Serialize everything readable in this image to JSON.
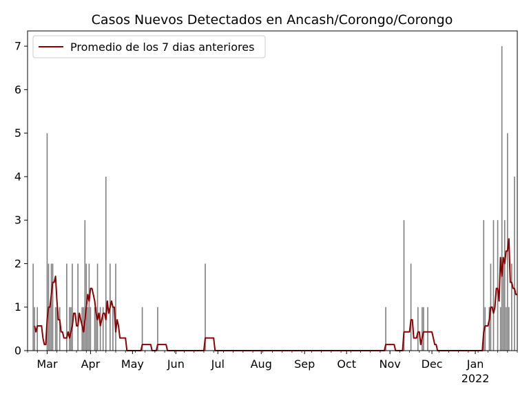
{
  "chart_data": {
    "type": "bar",
    "title": "Casos Nuevos Detectados en Ancash/Corongo/Corongo",
    "xlabel": "",
    "ylabel": "",
    "ylim": [
      0,
      7.35
    ],
    "xlim": [
      "2021-02-15",
      "2022-01-31"
    ],
    "yticks": [
      0,
      1,
      2,
      3,
      4,
      5,
      6,
      7
    ],
    "xticks": [
      {
        "date": "2021-03-01",
        "label": "Mar",
        "sub": ""
      },
      {
        "date": "2021-04-01",
        "label": "Apr",
        "sub": ""
      },
      {
        "date": "2021-05-01",
        "label": "May",
        "sub": ""
      },
      {
        "date": "2021-06-01",
        "label": "Jun",
        "sub": ""
      },
      {
        "date": "2021-07-01",
        "label": "Jul",
        "sub": ""
      },
      {
        "date": "2021-08-01",
        "label": "Aug",
        "sub": ""
      },
      {
        "date": "2021-09-01",
        "label": "Sep",
        "sub": ""
      },
      {
        "date": "2021-10-01",
        "label": "Oct",
        "sub": ""
      },
      {
        "date": "2021-11-01",
        "label": "Nov",
        "sub": ""
      },
      {
        "date": "2021-12-01",
        "label": "Dec",
        "sub": ""
      },
      {
        "date": "2022-01-01",
        "label": "Jan",
        "sub": "2022"
      }
    ],
    "legend": {
      "label": "Promedio de los 7 dias anteriores",
      "placement": "upper-left"
    },
    "series": [
      {
        "type": "bar",
        "color": "#808080",
        "points": [
          [
            "2021-02-19",
            2
          ],
          [
            "2021-02-20",
            1
          ],
          [
            "2021-02-22",
            1
          ],
          [
            "2021-03-01",
            5
          ],
          [
            "2021-03-02",
            2
          ],
          [
            "2021-03-03",
            1
          ],
          [
            "2021-03-04",
            2
          ],
          [
            "2021-03-05",
            2
          ],
          [
            "2021-03-07",
            1
          ],
          [
            "2021-03-08",
            1
          ],
          [
            "2021-03-10",
            1
          ],
          [
            "2021-03-15",
            2
          ],
          [
            "2021-03-17",
            1
          ],
          [
            "2021-03-18",
            1
          ],
          [
            "2021-03-19",
            2
          ],
          [
            "2021-03-23",
            2
          ],
          [
            "2021-03-26",
            1
          ],
          [
            "2021-03-27",
            1
          ],
          [
            "2021-03-28",
            3
          ],
          [
            "2021-03-29",
            2
          ],
          [
            "2021-03-30",
            1
          ],
          [
            "2021-03-31",
            2
          ],
          [
            "2021-04-01",
            1
          ],
          [
            "2021-04-04",
            1
          ],
          [
            "2021-04-05",
            1
          ],
          [
            "2021-04-06",
            2
          ],
          [
            "2021-04-08",
            1
          ],
          [
            "2021-04-10",
            1
          ],
          [
            "2021-04-12",
            4
          ],
          [
            "2021-04-15",
            2
          ],
          [
            "2021-04-17",
            1
          ],
          [
            "2021-04-19",
            2
          ],
          [
            "2021-05-08",
            1
          ],
          [
            "2021-05-19",
            1
          ],
          [
            "2021-06-22",
            2
          ],
          [
            "2021-10-29",
            1
          ],
          [
            "2021-11-11",
            3
          ],
          [
            "2021-11-16",
            2
          ],
          [
            "2021-11-21",
            1
          ],
          [
            "2021-11-24",
            1
          ],
          [
            "2021-11-25",
            1
          ],
          [
            "2021-11-28",
            1
          ],
          [
            "2022-01-07",
            3
          ],
          [
            "2022-01-08",
            1
          ],
          [
            "2022-01-11",
            1
          ],
          [
            "2022-01-12",
            2
          ],
          [
            "2022-01-14",
            3
          ],
          [
            "2022-01-17",
            3
          ],
          [
            "2022-01-19",
            1
          ],
          [
            "2022-01-20",
            7
          ],
          [
            "2022-01-21",
            2
          ],
          [
            "2022-01-22",
            3
          ],
          [
            "2022-01-23",
            1
          ],
          [
            "2022-01-24",
            5
          ],
          [
            "2022-01-25",
            1
          ],
          [
            "2022-01-27",
            2
          ],
          [
            "2022-01-29",
            4
          ]
        ]
      },
      {
        "type": "line",
        "name": "Promedio de los 7 dias anteriores",
        "color": "#8b0000",
        "points": [
          [
            "2021-02-20",
            0.57
          ],
          [
            "2021-02-21",
            0.43
          ],
          [
            "2021-02-22",
            0.57
          ],
          [
            "2021-02-25",
            0.57
          ],
          [
            "2021-02-26",
            0.29
          ],
          [
            "2021-02-27",
            0.14
          ],
          [
            "2021-02-28",
            0.14
          ],
          [
            "2021-03-01",
            0.71
          ],
          [
            "2021-03-02",
            1.0
          ],
          [
            "2021-03-03",
            1.0
          ],
          [
            "2021-03-04",
            1.29
          ],
          [
            "2021-03-05",
            1.57
          ],
          [
            "2021-03-06",
            1.57
          ],
          [
            "2021-03-07",
            1.71
          ],
          [
            "2021-03-08",
            1.14
          ],
          [
            "2021-03-09",
            0.71
          ],
          [
            "2021-03-10",
            0.71
          ],
          [
            "2021-03-11",
            0.43
          ],
          [
            "2021-03-12",
            0.43
          ],
          [
            "2021-03-13",
            0.29
          ],
          [
            "2021-03-15",
            0.29
          ],
          [
            "2021-03-16",
            0.43
          ],
          [
            "2021-03-17",
            0.29
          ],
          [
            "2021-03-18",
            0.43
          ],
          [
            "2021-03-19",
            0.57
          ],
          [
            "2021-03-20",
            0.86
          ],
          [
            "2021-03-21",
            0.86
          ],
          [
            "2021-03-22",
            0.57
          ],
          [
            "2021-03-23",
            0.57
          ],
          [
            "2021-03-24",
            0.86
          ],
          [
            "2021-03-25",
            0.71
          ],
          [
            "2021-03-26",
            0.57
          ],
          [
            "2021-03-27",
            0.43
          ],
          [
            "2021-03-28",
            0.71
          ],
          [
            "2021-03-29",
            1.0
          ],
          [
            "2021-03-30",
            1.29
          ],
          [
            "2021-03-31",
            1.14
          ],
          [
            "2021-04-01",
            1.43
          ],
          [
            "2021-04-02",
            1.43
          ],
          [
            "2021-04-03",
            1.29
          ],
          [
            "2021-04-04",
            1.14
          ],
          [
            "2021-04-05",
            0.86
          ],
          [
            "2021-04-06",
            0.71
          ],
          [
            "2021-04-07",
            0.86
          ],
          [
            "2021-04-08",
            0.57
          ],
          [
            "2021-04-09",
            0.71
          ],
          [
            "2021-04-10",
            0.86
          ],
          [
            "2021-04-11",
            0.86
          ],
          [
            "2021-04-12",
            0.71
          ],
          [
            "2021-04-13",
            1.14
          ],
          [
            "2021-04-14",
            0.86
          ],
          [
            "2021-04-15",
            1.0
          ],
          [
            "2021-04-16",
            1.14
          ],
          [
            "2021-04-17",
            1.0
          ],
          [
            "2021-04-18",
            1.0
          ],
          [
            "2021-04-19",
            0.43
          ],
          [
            "2021-04-20",
            0.71
          ],
          [
            "2021-04-21",
            0.57
          ],
          [
            "2021-04-22",
            0.29
          ],
          [
            "2021-04-26",
            0.29
          ],
          [
            "2021-04-27",
            0.0
          ],
          [
            "2021-05-07",
            0.0
          ],
          [
            "2021-05-08",
            0.14
          ],
          [
            "2021-05-14",
            0.14
          ],
          [
            "2021-05-15",
            0.0
          ],
          [
            "2021-05-18",
            0.0
          ],
          [
            "2021-05-19",
            0.14
          ],
          [
            "2021-05-25",
            0.14
          ],
          [
            "2021-05-26",
            0.0
          ],
          [
            "2021-06-21",
            0.0
          ],
          [
            "2021-06-22",
            0.29
          ],
          [
            "2021-06-28",
            0.29
          ],
          [
            "2021-06-29",
            0.0
          ],
          [
            "2021-10-28",
            0.0
          ],
          [
            "2021-10-29",
            0.14
          ],
          [
            "2021-11-04",
            0.14
          ],
          [
            "2021-11-05",
            0.0
          ],
          [
            "2021-11-10",
            0.0
          ],
          [
            "2021-11-11",
            0.43
          ],
          [
            "2021-11-15",
            0.43
          ],
          [
            "2021-11-16",
            0.71
          ],
          [
            "2021-11-17",
            0.71
          ],
          [
            "2021-11-18",
            0.29
          ],
          [
            "2021-11-20",
            0.29
          ],
          [
            "2021-11-21",
            0.43
          ],
          [
            "2021-11-22",
            0.43
          ],
          [
            "2021-11-23",
            0.14
          ],
          [
            "2021-11-24",
            0.29
          ],
          [
            "2021-11-25",
            0.43
          ],
          [
            "2021-12-01",
            0.43
          ],
          [
            "2021-12-02",
            0.29
          ],
          [
            "2021-12-03",
            0.14
          ],
          [
            "2021-12-04",
            0.14
          ],
          [
            "2021-12-05",
            0.0
          ],
          [
            "2022-01-06",
            0.0
          ],
          [
            "2022-01-07",
            0.43
          ],
          [
            "2022-01-08",
            0.57
          ],
          [
            "2022-01-10",
            0.57
          ],
          [
            "2022-01-11",
            0.71
          ],
          [
            "2022-01-12",
            1.0
          ],
          [
            "2022-01-13",
            1.0
          ],
          [
            "2022-01-14",
            0.86
          ],
          [
            "2022-01-15",
            1.0
          ],
          [
            "2022-01-16",
            1.43
          ],
          [
            "2022-01-17",
            1.43
          ],
          [
            "2022-01-18",
            1.14
          ],
          [
            "2022-01-19",
            2.14
          ],
          [
            "2022-01-20",
            1.71
          ],
          [
            "2022-01-21",
            2.14
          ],
          [
            "2022-01-22",
            2.0
          ],
          [
            "2022-01-23",
            2.29
          ],
          [
            "2022-01-24",
            2.29
          ],
          [
            "2022-01-25",
            2.57
          ],
          [
            "2022-01-26",
            1.57
          ],
          [
            "2022-01-27",
            1.57
          ],
          [
            "2022-01-28",
            1.43
          ],
          [
            "2022-01-29",
            1.43
          ],
          [
            "2022-01-30",
            1.29
          ],
          [
            "2022-01-31",
            1.29
          ]
        ]
      }
    ]
  }
}
